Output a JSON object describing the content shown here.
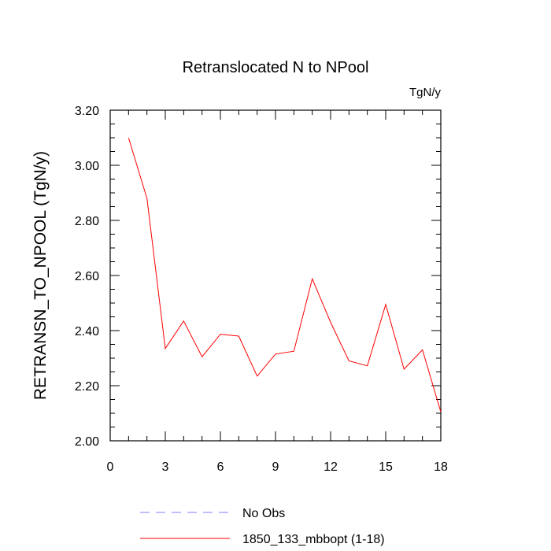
{
  "chart_data": {
    "type": "line",
    "title": "Retranslocated N to NPool",
    "units_label": "TgN/y",
    "xlabel": "",
    "ylabel": "RETRANSN_TO_NPOOL  (TgN/y)",
    "xlim": [
      0,
      18
    ],
    "ylim": [
      2.0,
      3.2
    ],
    "x_ticks": [
      0,
      3,
      6,
      9,
      12,
      15,
      18
    ],
    "x_tick_labels": [
      "0",
      "3",
      "6",
      "9",
      "12",
      "15",
      "18"
    ],
    "y_ticks": [
      2.0,
      2.2,
      2.4,
      2.6,
      2.8,
      3.0,
      3.2
    ],
    "y_tick_labels": [
      "2.00",
      "2.20",
      "2.40",
      "2.60",
      "2.80",
      "3.00",
      "3.20"
    ],
    "series": [
      {
        "name": "1850_133_mbbopt (1-18)",
        "color": "#ff0000",
        "style": "solid",
        "x": [
          1,
          2,
          3,
          4,
          5,
          6,
          7,
          8,
          9,
          10,
          11,
          12,
          13,
          14,
          15,
          16,
          17,
          18
        ],
        "values": [
          3.1,
          2.88,
          2.335,
          2.435,
          2.305,
          2.387,
          2.38,
          2.235,
          2.315,
          2.325,
          2.588,
          2.43,
          2.29,
          2.272,
          2.495,
          2.26,
          2.33,
          2.105
        ]
      }
    ],
    "legend": [
      {
        "label": "No Obs",
        "color": "#8080ff",
        "style": "dashed"
      },
      {
        "label": "1850_133_mbbopt (1-18)",
        "color": "#ff0000",
        "style": "solid"
      }
    ]
  }
}
